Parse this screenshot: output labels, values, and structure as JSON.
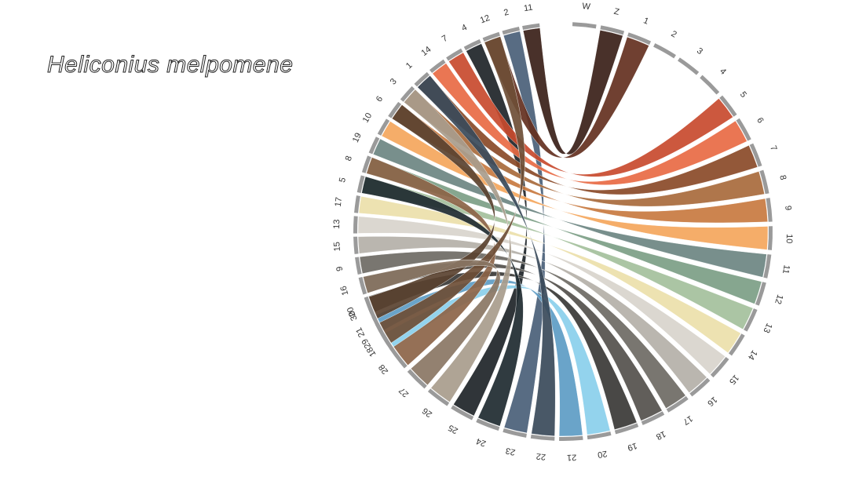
{
  "title": "Heliconius melpomene",
  "chart_data": {
    "type": "chord",
    "sets": [
      {
        "side": "top-right",
        "chromosomes": [
          {
            "label": "W",
            "color": "#8a8a8a"
          },
          {
            "label": "Z",
            "color": "#2e1e18"
          },
          {
            "label": "1",
            "color": "#4e3222"
          },
          {
            "label": "2",
            "color": "#6d3324"
          },
          {
            "label": "3",
            "color": "#8c2c24"
          },
          {
            "label": "4",
            "color": "#a63a2a"
          },
          {
            "label": "5",
            "color": "#c85a36"
          },
          {
            "label": "6",
            "color": "#e46c44"
          },
          {
            "label": "7",
            "color": "#8a4a28"
          },
          {
            "label": "8",
            "color": "#a86a3c"
          },
          {
            "label": "9",
            "color": "#d28848"
          },
          {
            "label": "10",
            "color": "#f4a65c"
          },
          {
            "label": "11",
            "color": "#6c8682"
          },
          {
            "label": "12",
            "color": "#7c9e86"
          },
          {
            "label": "13",
            "color": "#a4c09c"
          },
          {
            "label": "14",
            "color": "#ece0aa"
          },
          {
            "label": "15",
            "color": "#d8d4cc"
          },
          {
            "label": "16",
            "color": "#b4b0a8"
          },
          {
            "label": "17",
            "color": "#6e6a64"
          },
          {
            "label": "18",
            "color": "#54504c"
          },
          {
            "label": "19",
            "color": "#3a3836"
          },
          {
            "label": "20",
            "color": "#8acfec"
          },
          {
            "label": "21",
            "color": "#5d9cc4"
          },
          {
            "label": "22",
            "color": "#46678a"
          },
          {
            "label": "23",
            "color": "#2e4458"
          },
          {
            "label": "24",
            "color": "#1e2a30"
          },
          {
            "label": "25",
            "color": "#262424"
          },
          {
            "label": "26",
            "color": "#a89c8c"
          },
          {
            "label": "27",
            "color": "#8a7664"
          },
          {
            "label": "28",
            "color": "#8c6448"
          },
          {
            "label": "29",
            "color": "#6e4e36"
          },
          {
            "label": "30",
            "color": "#5a4230"
          }
        ]
      },
      {
        "side": "top-left",
        "chromosomes": [
          {
            "label": "11",
            "color": "#3a2018"
          },
          {
            "label": "2",
            "color": "#4a6078"
          },
          {
            "label": "12",
            "color": "#643020"
          },
          {
            "label": "4",
            "color": "#1e2428"
          },
          {
            "label": "7",
            "color": "#c84a2e"
          },
          {
            "label": "14",
            "color": "#e86a44"
          },
          {
            "label": "1",
            "color": "#8a4a28"
          },
          {
            "label": "3",
            "color": "#a86a3c"
          },
          {
            "label": "6",
            "color": "#c87a40"
          },
          {
            "label": "10",
            "color": "#f4a65c"
          },
          {
            "label": "19",
            "color": "#6c8682"
          },
          {
            "label": "8",
            "color": "#7c9e86"
          },
          {
            "label": "5",
            "color": "#a4c09c"
          },
          {
            "label": "17",
            "color": "#ece0aa"
          },
          {
            "label": "13",
            "color": "#d8d4cc"
          },
          {
            "label": "15",
            "color": "#b4b0a8"
          },
          {
            "label": "9",
            "color": "#6e6a64"
          },
          {
            "label": "16",
            "color": "#54504c"
          },
          {
            "label": "20",
            "color": "#3a3836"
          },
          {
            "label": "21",
            "color": "#5d9cc4"
          },
          {
            "label": "18",
            "color": "#8acfec"
          }
        ]
      }
    ],
    "links": [
      {
        "from": [
          "top-left",
          "11"
        ],
        "to": [
          "top-right",
          "Z"
        ],
        "color": "#3a2018"
      },
      {
        "from": [
          "top-left",
          "2"
        ],
        "to": [
          "top-right",
          "23"
        ],
        "color": "#4a6078"
      },
      {
        "from": [
          "top-left",
          "12"
        ],
        "to": [
          "top-right",
          "1"
        ],
        "color": "#643020"
      },
      {
        "from": [
          "top-left",
          "4"
        ],
        "to": [
          "top-right",
          "25"
        ],
        "color": "#1e2428"
      },
      {
        "from": [
          "top-left",
          "7"
        ],
        "to": [
          "top-right",
          "5"
        ],
        "color": "#c84a2e"
      },
      {
        "from": [
          "top-left",
          "14"
        ],
        "to": [
          "top-right",
          "6"
        ],
        "color": "#e86a44"
      },
      {
        "from": [
          "top-left",
          "1"
        ],
        "to": [
          "top-right",
          "7"
        ],
        "color": "#8a4a28"
      },
      {
        "from": [
          "top-left",
          "3"
        ],
        "to": [
          "top-right",
          "8"
        ],
        "color": "#a86a3c"
      },
      {
        "from": [
          "top-left",
          "6"
        ],
        "to": [
          "top-right",
          "9"
        ],
        "color": "#c87a40"
      },
      {
        "from": [
          "top-left",
          "10"
        ],
        "to": [
          "top-right",
          "10"
        ],
        "color": "#f4a65c"
      },
      {
        "from": [
          "top-left",
          "19"
        ],
        "to": [
          "top-right",
          "11"
        ],
        "color": "#6c8682"
      },
      {
        "from": [
          "top-left",
          "8"
        ],
        "to": [
          "top-right",
          "12"
        ],
        "color": "#7c9e86"
      },
      {
        "from": [
          "top-left",
          "5"
        ],
        "to": [
          "top-right",
          "13"
        ],
        "color": "#a4c09c"
      },
      {
        "from": [
          "top-left",
          "17"
        ],
        "to": [
          "top-right",
          "14"
        ],
        "color": "#ece0aa"
      },
      {
        "from": [
          "top-left",
          "13"
        ],
        "to": [
          "top-right",
          "15"
        ],
        "color": "#d8d4cc"
      },
      {
        "from": [
          "top-left",
          "15"
        ],
        "to": [
          "top-right",
          "16"
        ],
        "color": "#b4b0a8"
      },
      {
        "from": [
          "top-left",
          "9"
        ],
        "to": [
          "top-right",
          "17"
        ],
        "color": "#6e6a64"
      },
      {
        "from": [
          "top-left",
          "16"
        ],
        "to": [
          "top-right",
          "18"
        ],
        "color": "#54504c"
      },
      {
        "from": [
          "top-left",
          "20"
        ],
        "to": [
          "top-right",
          "19"
        ],
        "color": "#3a3836"
      },
      {
        "from": [
          "top-left",
          "21"
        ],
        "to": [
          "top-right",
          "21"
        ],
        "color": "#5d9cc4"
      },
      {
        "from": [
          "top-left",
          "18"
        ],
        "to": [
          "top-right",
          "20"
        ],
        "color": "#8acfec"
      },
      {
        "from": [
          "top-left",
          "3"
        ],
        "to": [
          "top-right",
          "26"
        ],
        "color": "#a89c8c"
      },
      {
        "from": [
          "top-left",
          "8"
        ],
        "to": [
          "top-right",
          "28"
        ],
        "color": "#8c6448"
      },
      {
        "from": [
          "top-left",
          "5"
        ],
        "to": [
          "top-right",
          "24"
        ],
        "color": "#1e2a30"
      },
      {
        "from": [
          "top-left",
          "12"
        ],
        "to": [
          "top-right",
          "29"
        ],
        "color": "#6e4e36"
      },
      {
        "from": [
          "top-left",
          "1"
        ],
        "to": [
          "top-right",
          "22"
        ],
        "color": "#3a4a5a"
      },
      {
        "from": [
          "top-left",
          "6"
        ],
        "to": [
          "top-right",
          "30"
        ],
        "color": "#5a4230"
      },
      {
        "from": [
          "top-left",
          "16"
        ],
        "to": [
          "top-right",
          "27"
        ],
        "color": "#8a7664"
      }
    ]
  }
}
